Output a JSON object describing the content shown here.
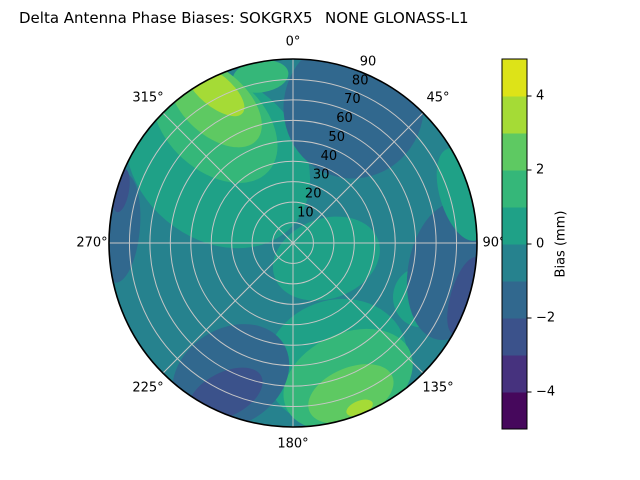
{
  "title": {
    "left": "Delta Antenna Phase Biases: SOKGRX5",
    "right": "NONE GLONASS-L1"
  },
  "chart_data": {
    "type": "polar_contour",
    "title": "Delta Antenna Phase Biases: SOKGRX5         NONE GLONASS-L1",
    "angular_unit": "degrees_clockwise_from_north",
    "angular_ticks": [
      {
        "value": 0,
        "label": "0°"
      },
      {
        "value": 45,
        "label": "45°"
      },
      {
        "value": 90,
        "label": "90°"
      },
      {
        "value": 135,
        "label": "135°"
      },
      {
        "value": 180,
        "label": "180°"
      },
      {
        "value": 225,
        "label": "225°"
      },
      {
        "value": 270,
        "label": "270°"
      },
      {
        "value": 315,
        "label": "315°"
      }
    ],
    "radial_ticks": [
      {
        "value": 10,
        "label": "10"
      },
      {
        "value": 20,
        "label": "20"
      },
      {
        "value": 30,
        "label": "30"
      },
      {
        "value": 40,
        "label": "40"
      },
      {
        "value": 50,
        "label": "50"
      },
      {
        "value": 60,
        "label": "60"
      },
      {
        "value": 70,
        "label": "70"
      },
      {
        "value": 80,
        "label": "80"
      },
      {
        "value": 90,
        "label": "90"
      }
    ],
    "radial_tick_angle": 22.5,
    "radial_max": 90,
    "grid_color": "#c6c6c6",
    "spine_color": "#000000",
    "colorbar": {
      "label": "Bias (mm)",
      "range": [
        -5,
        5
      ],
      "ticks": [
        {
          "value": 4,
          "label": "4"
        },
        {
          "value": 2,
          "label": "2"
        },
        {
          "value": 0,
          "label": "0"
        },
        {
          "value": -2,
          "label": "−2"
        },
        {
          "value": -4,
          "label": "−4"
        }
      ],
      "segment_colors_bottom_to_top": [
        "#46085c",
        "#46327e",
        "#3b528b",
        "#31688e",
        "#26828e",
        "#1fa187",
        "#35b779",
        "#5ec962",
        "#a5db36",
        "#dde318"
      ]
    },
    "base_level": "-1..0 mm",
    "base_color": "#26828e",
    "regions": [
      {
        "level": "0..1",
        "color": "#1fa187",
        "theta": 318,
        "r": 55,
        "rx": 100,
        "ry": 80,
        "rot": 40
      },
      {
        "level": "0..1",
        "color": "#1fa187",
        "theta": 115,
        "r": 18,
        "rx": 55,
        "ry": 40,
        "rot": -20
      },
      {
        "level": "0..1",
        "color": "#1fa187",
        "theta": 113,
        "r": 68,
        "rx": 28,
        "ry": 30,
        "rot": 0
      },
      {
        "level": "0..1",
        "color": "#1fa187",
        "theta": 160,
        "r": 62,
        "rx": 72,
        "ry": 62,
        "rot": -20
      },
      {
        "level": "1..2",
        "color": "#35b779",
        "theta": 327,
        "r": 70,
        "rx": 72,
        "ry": 48,
        "rot": 42
      },
      {
        "level": "1..2",
        "color": "#35b779",
        "theta": 349,
        "r": 83,
        "rx": 28,
        "ry": 16,
        "rot": -8
      },
      {
        "level": "1..2",
        "color": "#35b779",
        "theta": 158,
        "r": 72,
        "rx": 68,
        "ry": 46,
        "rot": -25
      },
      {
        "level": "2..3",
        "color": "#5ec962",
        "theta": 331,
        "r": 78,
        "rx": 55,
        "ry": 32,
        "rot": 42
      },
      {
        "level": "2..3",
        "color": "#5ec962",
        "theta": 159,
        "r": 79,
        "rx": 45,
        "ry": 26,
        "rot": -23
      },
      {
        "level": "3..4",
        "color": "#a5db36",
        "theta": 333,
        "r": 84,
        "rx": 36,
        "ry": 16,
        "rot": 40
      },
      {
        "level": "3..4",
        "color": "#a5db36",
        "theta": 158,
        "r": 87,
        "rx": 14,
        "ry": 7,
        "rot": -22
      },
      {
        "level": "-2..-1",
        "color": "#31688e",
        "theta": 24,
        "r": 73,
        "rx": 70,
        "ry": 72,
        "rot": 18
      },
      {
        "level": "-2..-1",
        "color": "#31688e",
        "theta": 205,
        "r": 72,
        "rx": 62,
        "ry": 48,
        "rot": -32
      },
      {
        "level": "-2..-1",
        "color": "#31688e",
        "theta": 275,
        "r": 85,
        "rx": 20,
        "ry": 55,
        "rot": 5
      },
      {
        "level": "-2..-1",
        "color": "#31688e",
        "theta": 100,
        "r": 78,
        "rx": 42,
        "ry": 70,
        "rot": 10
      },
      {
        "level": "-3..-2",
        "color": "#3b528b",
        "theta": 107,
        "r": 88,
        "rx": 14,
        "ry": 40,
        "rot": 17
      },
      {
        "level": "-3..-2",
        "color": "#3b528b",
        "theta": 204,
        "r": 81,
        "rx": 40,
        "ry": 22,
        "rot": -27
      },
      {
        "level": "-3..-2",
        "color": "#3b528b",
        "theta": 287,
        "r": 88,
        "rx": 8,
        "ry": 22,
        "rot": 10
      },
      {
        "level": "0..1",
        "color": "#1fa187",
        "theta": 74,
        "r": 86,
        "rx": 22,
        "ry": 48,
        "rot": -17
      }
    ]
  }
}
